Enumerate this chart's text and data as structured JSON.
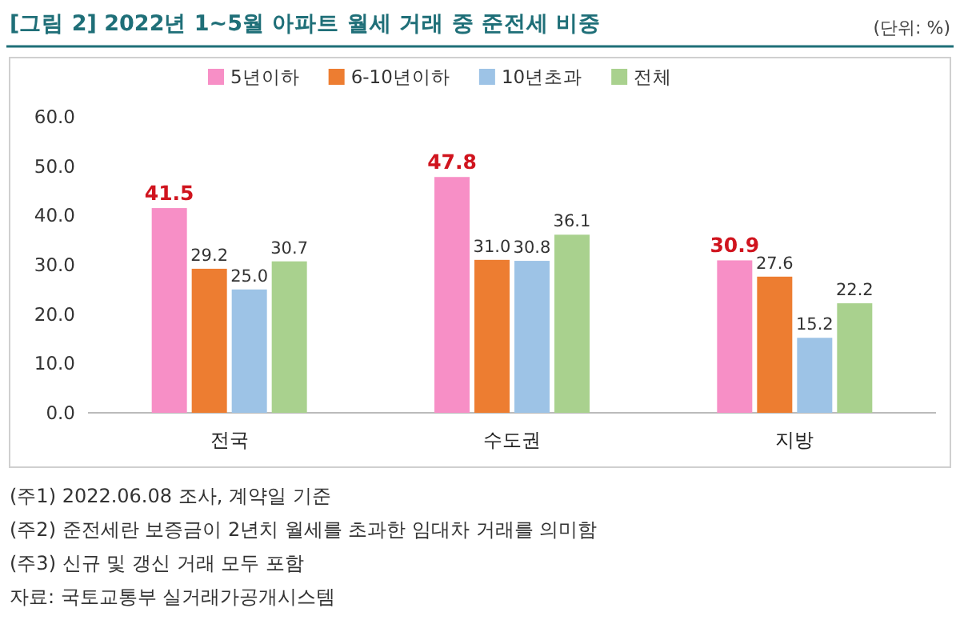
{
  "chart_data": {
    "type": "bar",
    "title": "[그림 2] 2022년 1~5월 아파트 월세 거래 중 준전세 비중",
    "subtitle": "(단위: %)",
    "categories": [
      "전국",
      "수도권",
      "지방"
    ],
    "series": [
      {
        "name": "5년이하",
        "color": "#f78fc6",
        "values": [
          41.5,
          47.8,
          30.9
        ],
        "value_labels": [
          "41.5",
          "47.8",
          "30.9"
        ]
      },
      {
        "name": "6-10년이하",
        "color": "#ed7d31",
        "values": [
          29.2,
          31.0,
          27.6
        ],
        "value_labels": [
          "29.2",
          "31.0",
          "27.6"
        ]
      },
      {
        "name": "10년초과",
        "color": "#9dc3e6",
        "values": [
          25.0,
          30.8,
          15.2
        ],
        "value_labels": [
          "25.0",
          "30.8",
          "15.2"
        ]
      },
      {
        "name": "전체",
        "color": "#a9d18e",
        "values": [
          30.7,
          36.1,
          22.2
        ],
        "value_labels": [
          "30.7",
          "36.1",
          "22.2"
        ]
      }
    ],
    "ylim": [
      0,
      60
    ],
    "yticks": [
      {
        "value": 0,
        "label": "0.0"
      },
      {
        "value": 10,
        "label": "10.0"
      },
      {
        "value": 20,
        "label": "20.0"
      },
      {
        "value": 30,
        "label": "30.0"
      },
      {
        "value": 40,
        "label": "40.0"
      },
      {
        "value": 50,
        "label": "50.0"
      },
      {
        "value": 60,
        "label": "60.0"
      }
    ],
    "grid": false,
    "legend": "top",
    "annotations": [
      "(주1) 2022.06.08 조사, 계약일 기준",
      "(주2) 준전세란 보증금이 2년치 월세를 초과한 임대차 거래를 의미함",
      "(주3) 신규 및 갱신 거래 모두 포함",
      "자료: 국토교통부 실거래가공개시스템"
    ]
  }
}
